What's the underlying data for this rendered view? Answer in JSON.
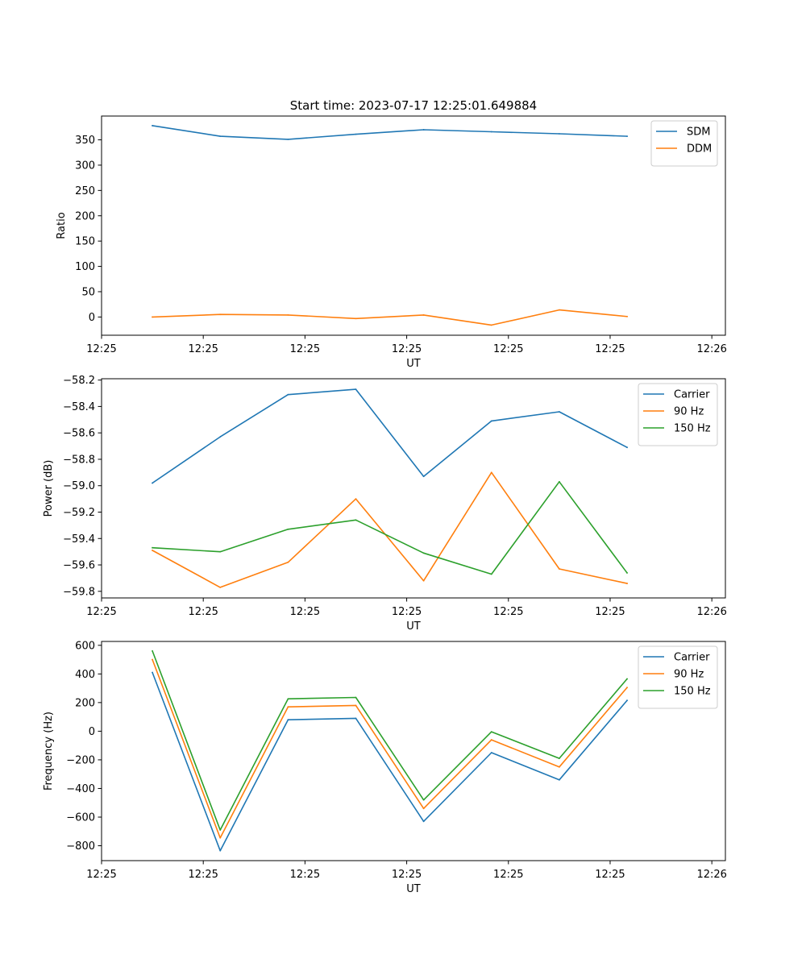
{
  "figure": {
    "title": "Start time: 2023-07-17 12:25:01.649884"
  },
  "colors": {
    "blue": "#1f77b4",
    "orange": "#ff7f0e",
    "green": "#2ca02c"
  },
  "chart_data": [
    {
      "type": "line",
      "title": "Start time: 2023-07-17 12:25:01.649884",
      "xlabel": "UT",
      "ylabel": "Ratio",
      "x": [
        0,
        1,
        2,
        3,
        4,
        5,
        6,
        7
      ],
      "xlim": [
        -0.75,
        8.45
      ],
      "x_ticks": [
        -0.75,
        0.75,
        2.25,
        3.75,
        5.25,
        6.75,
        8.25
      ],
      "x_tick_labels": [
        "12:25",
        "12:25",
        "12:25",
        "12:25",
        "12:25",
        "12:25",
        "12:26"
      ],
      "ylim": [
        -36,
        397
      ],
      "y_ticks": [
        0,
        50,
        100,
        150,
        200,
        250,
        300,
        350
      ],
      "y_tick_labels": [
        "0",
        "50",
        "100",
        "150",
        "200",
        "250",
        "300",
        "350"
      ],
      "legend": "upper-right",
      "series": [
        {
          "name": "SDM",
          "color": "#1f77b4",
          "values": [
            378,
            357,
            351,
            361,
            370,
            366,
            362,
            357
          ]
        },
        {
          "name": "DDM",
          "color": "#ff7f0e",
          "values": [
            0,
            5,
            4,
            -3,
            4,
            -16,
            14,
            1
          ]
        }
      ]
    },
    {
      "type": "line",
      "xlabel": "UT",
      "ylabel": "Power (dB)",
      "x": [
        0,
        1,
        2,
        3,
        4,
        5,
        6,
        7
      ],
      "xlim": [
        -0.75,
        8.45
      ],
      "x_ticks": [
        -0.75,
        0.75,
        2.25,
        3.75,
        5.25,
        6.75,
        8.25
      ],
      "x_tick_labels": [
        "12:25",
        "12:25",
        "12:25",
        "12:25",
        "12:25",
        "12:25",
        "12:26"
      ],
      "ylim": [
        -59.85,
        -58.19
      ],
      "y_ticks": [
        -59.8,
        -59.6,
        -59.4,
        -59.2,
        -59.0,
        -58.8,
        -58.6,
        -58.4,
        -58.2
      ],
      "y_tick_labels": [
        "−59.8",
        "−59.6",
        "−59.4",
        "−59.2",
        "−59.0",
        "−58.8",
        "−58.6",
        "−58.4",
        "−58.2"
      ],
      "legend": "upper-right",
      "series": [
        {
          "name": "Carrier",
          "color": "#1f77b4",
          "values": [
            -58.98,
            -58.63,
            -58.31,
            -58.27,
            -58.93,
            -58.51,
            -58.44,
            -58.71
          ]
        },
        {
          "name": "90 Hz",
          "color": "#ff7f0e",
          "values": [
            -59.49,
            -59.77,
            -59.58,
            -59.1,
            -59.72,
            -58.9,
            -59.63,
            -59.74
          ]
        },
        {
          "name": "150 Hz",
          "color": "#2ca02c",
          "values": [
            -59.47,
            -59.5,
            -59.33,
            -59.26,
            -59.51,
            -59.67,
            -58.97,
            -59.66
          ]
        }
      ]
    },
    {
      "type": "line",
      "xlabel": "UT",
      "ylabel": "Frequency (Hz)",
      "x": [
        0,
        1,
        2,
        3,
        4,
        5,
        6,
        7
      ],
      "xlim": [
        -0.75,
        8.45
      ],
      "x_ticks": [
        -0.75,
        0.75,
        2.25,
        3.75,
        5.25,
        6.75,
        8.25
      ],
      "x_tick_labels": [
        "12:25",
        "12:25",
        "12:25",
        "12:25",
        "12:25",
        "12:25",
        "12:26"
      ],
      "ylim": [
        -904,
        627
      ],
      "y_ticks": [
        -800,
        -600,
        -400,
        -200,
        0,
        200,
        400,
        600
      ],
      "y_tick_labels": [
        "−800",
        "−600",
        "−400",
        "−200",
        "0",
        "200",
        "400",
        "600"
      ],
      "legend": "upper-right",
      "series": [
        {
          "name": "Carrier",
          "color": "#1f77b4",
          "values": [
            410,
            -835,
            80,
            90,
            -630,
            -150,
            -340,
            215
          ]
        },
        {
          "name": "90 Hz",
          "color": "#ff7f0e",
          "values": [
            500,
            -745,
            170,
            180,
            -540,
            -60,
            -250,
            305
          ]
        },
        {
          "name": "150 Hz",
          "color": "#2ca02c",
          "values": [
            560,
            -690,
            226,
            236,
            -480,
            -4,
            -190,
            365
          ]
        }
      ]
    }
  ]
}
